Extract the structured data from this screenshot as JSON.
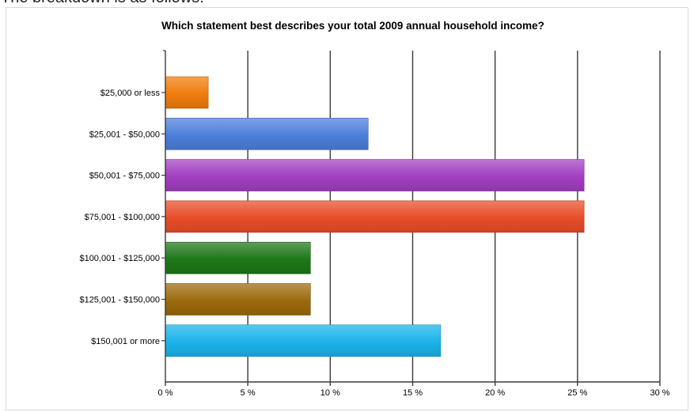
{
  "intro_text": "The breakdown is as follows:",
  "chart_data": {
    "type": "bar",
    "orientation": "horizontal",
    "title": "Which statement best describes your total 2009 annual household income?",
    "xlabel": "",
    "ylabel": "",
    "categories": [
      "$25,000 or less",
      "$25,001 - $50,000",
      "$50,001 - $75,000",
      "$75,001 - $100,000",
      "$100,001 - $125,000",
      "$125,001 - $150,000",
      "$150,001 or more"
    ],
    "values": [
      2.6,
      12.3,
      25.4,
      25.4,
      8.8,
      8.8,
      16.7
    ],
    "colors": [
      "#f07c0d",
      "#4c7fdb",
      "#a23ec1",
      "#e84d28",
      "#1d7818",
      "#9c6a0c",
      "#1ab3ea"
    ],
    "xlim": [
      0,
      30
    ],
    "xticks": [
      0,
      5,
      10,
      15,
      20,
      25,
      30
    ],
    "xtick_labels": [
      "0 %",
      "5 %",
      "10 %",
      "15 %",
      "20 %",
      "25 %",
      "30 %"
    ],
    "grid": "vertical",
    "legend": "none"
  }
}
